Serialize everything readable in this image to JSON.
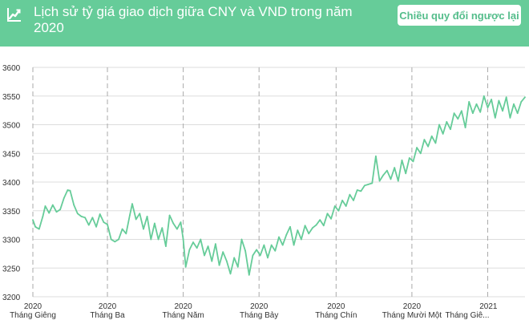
{
  "header": {
    "title": "Lịch sử tỷ giá giao dịch giữa CNY và VND trong năm 2020",
    "icon": "line-chart-icon",
    "reverse_button": "Chiều quy đổi ngược lại"
  },
  "colors": {
    "header_bg": "#66cc99",
    "line": "#66cc99",
    "button_text": "#54bd8b"
  },
  "chart_data": {
    "type": "line",
    "title": "",
    "xlabel": "",
    "ylabel": "",
    "ylim": [
      3200,
      3600
    ],
    "yticks": [
      3200,
      3250,
      3300,
      3350,
      3400,
      3450,
      3500,
      3550,
      3600
    ],
    "xlim": [
      "2020-01-01",
      "2021-01-31"
    ],
    "xticks": [
      {
        "date": "2020-01-01",
        "year": "2020",
        "month": "Tháng Giêng"
      },
      {
        "date": "2020-03-01",
        "year": "2020",
        "month": "Tháng Ba"
      },
      {
        "date": "2020-05-01",
        "year": "2020",
        "month": "Tháng Năm"
      },
      {
        "date": "2020-07-01",
        "year": "2020",
        "month": "Tháng Bảy"
      },
      {
        "date": "2020-09-01",
        "year": "2020",
        "month": "Tháng Chín"
      },
      {
        "date": "2020-11-01",
        "year": "2020",
        "month": "Tháng Mười Một"
      },
      {
        "date": "2021-01-01",
        "year": "2021",
        "month": "Tháng Giê..."
      }
    ],
    "grid": true,
    "series": [
      {
        "values": [
          [
            "2020-01-01",
            3334
          ],
          [
            "2020-01-03",
            3322
          ],
          [
            "2020-01-06",
            3318
          ],
          [
            "2020-01-09",
            3340
          ],
          [
            "2020-01-11",
            3358
          ],
          [
            "2020-01-14",
            3346
          ],
          [
            "2020-01-17",
            3360
          ],
          [
            "2020-01-20",
            3348
          ],
          [
            "2020-01-23",
            3352
          ],
          [
            "2020-01-26",
            3372
          ],
          [
            "2020-01-29",
            3386
          ],
          [
            "2020-01-31",
            3385
          ],
          [
            "2020-02-03",
            3360
          ],
          [
            "2020-02-06",
            3345
          ],
          [
            "2020-02-09",
            3340
          ],
          [
            "2020-02-12",
            3338
          ],
          [
            "2020-02-15",
            3325
          ],
          [
            "2020-02-18",
            3338
          ],
          [
            "2020-02-21",
            3322
          ],
          [
            "2020-02-24",
            3344
          ],
          [
            "2020-02-27",
            3330
          ],
          [
            "2020-03-01",
            3326
          ],
          [
            "2020-03-04",
            3300
          ],
          [
            "2020-03-07",
            3296
          ],
          [
            "2020-03-10",
            3300
          ],
          [
            "2020-03-13",
            3318
          ],
          [
            "2020-03-16",
            3310
          ],
          [
            "2020-03-19",
            3342
          ],
          [
            "2020-03-21",
            3362
          ],
          [
            "2020-03-24",
            3335
          ],
          [
            "2020-03-27",
            3345
          ],
          [
            "2020-03-30",
            3318
          ],
          [
            "2020-04-02",
            3340
          ],
          [
            "2020-04-05",
            3300
          ],
          [
            "2020-04-08",
            3328
          ],
          [
            "2020-04-11",
            3300
          ],
          [
            "2020-04-14",
            3320
          ],
          [
            "2020-04-17",
            3288
          ],
          [
            "2020-04-20",
            3342
          ],
          [
            "2020-04-23",
            3328
          ],
          [
            "2020-04-26",
            3318
          ],
          [
            "2020-04-29",
            3330
          ],
          [
            "2020-05-01",
            3300
          ],
          [
            "2020-05-03",
            3252
          ],
          [
            "2020-05-06",
            3282
          ],
          [
            "2020-05-09",
            3295
          ],
          [
            "2020-05-12",
            3285
          ],
          [
            "2020-05-15",
            3300
          ],
          [
            "2020-05-18",
            3272
          ],
          [
            "2020-05-21",
            3288
          ],
          [
            "2020-05-24",
            3262
          ],
          [
            "2020-05-27",
            3292
          ],
          [
            "2020-05-30",
            3255
          ],
          [
            "2020-06-02",
            3278
          ],
          [
            "2020-06-05",
            3262
          ],
          [
            "2020-06-08",
            3240
          ],
          [
            "2020-06-11",
            3268
          ],
          [
            "2020-06-14",
            3252
          ],
          [
            "2020-06-17",
            3300
          ],
          [
            "2020-06-20",
            3280
          ],
          [
            "2020-06-23",
            3238
          ],
          [
            "2020-06-26",
            3272
          ],
          [
            "2020-06-29",
            3282
          ],
          [
            "2020-07-02",
            3272
          ],
          [
            "2020-07-05",
            3290
          ],
          [
            "2020-07-08",
            3268
          ],
          [
            "2020-07-11",
            3290
          ],
          [
            "2020-07-14",
            3280
          ],
          [
            "2020-07-17",
            3304
          ],
          [
            "2020-07-20",
            3290
          ],
          [
            "2020-07-23",
            3308
          ],
          [
            "2020-07-26",
            3322
          ],
          [
            "2020-07-29",
            3290
          ],
          [
            "2020-08-01",
            3316
          ],
          [
            "2020-08-04",
            3300
          ],
          [
            "2020-08-07",
            3324
          ],
          [
            "2020-08-10",
            3310
          ],
          [
            "2020-08-13",
            3320
          ],
          [
            "2020-08-16",
            3325
          ],
          [
            "2020-08-19",
            3334
          ],
          [
            "2020-08-22",
            3324
          ],
          [
            "2020-08-25",
            3345
          ],
          [
            "2020-08-28",
            3336
          ],
          [
            "2020-08-31",
            3358
          ],
          [
            "2020-09-03",
            3350
          ],
          [
            "2020-09-06",
            3368
          ],
          [
            "2020-09-09",
            3358
          ],
          [
            "2020-09-12",
            3378
          ],
          [
            "2020-09-15",
            3368
          ],
          [
            "2020-09-18",
            3386
          ],
          [
            "2020-09-21",
            3384
          ],
          [
            "2020-09-24",
            3394
          ],
          [
            "2020-09-27",
            3396
          ],
          [
            "2020-09-30",
            3398
          ],
          [
            "2020-10-03",
            3445
          ],
          [
            "2020-10-06",
            3402
          ],
          [
            "2020-10-09",
            3412
          ],
          [
            "2020-10-12",
            3420
          ],
          [
            "2020-10-15",
            3405
          ],
          [
            "2020-10-18",
            3425
          ],
          [
            "2020-10-21",
            3402
          ],
          [
            "2020-10-24",
            3438
          ],
          [
            "2020-10-27",
            3415
          ],
          [
            "2020-10-30",
            3442
          ],
          [
            "2020-11-02",
            3436
          ],
          [
            "2020-11-05",
            3460
          ],
          [
            "2020-11-08",
            3450
          ],
          [
            "2020-11-11",
            3474
          ],
          [
            "2020-11-14",
            3462
          ],
          [
            "2020-11-17",
            3480
          ],
          [
            "2020-11-20",
            3468
          ],
          [
            "2020-11-23",
            3500
          ],
          [
            "2020-11-26",
            3484
          ],
          [
            "2020-11-29",
            3505
          ],
          [
            "2020-12-02",
            3492
          ],
          [
            "2020-12-05",
            3520
          ],
          [
            "2020-12-08",
            3510
          ],
          [
            "2020-12-11",
            3524
          ],
          [
            "2020-12-14",
            3495
          ],
          [
            "2020-12-17",
            3540
          ],
          [
            "2020-12-20",
            3520
          ],
          [
            "2020-12-23",
            3536
          ],
          [
            "2020-12-26",
            3522
          ],
          [
            "2020-12-29",
            3550
          ],
          [
            "2021-01-01",
            3530
          ],
          [
            "2021-01-04",
            3544
          ],
          [
            "2021-01-07",
            3512
          ],
          [
            "2021-01-10",
            3542
          ],
          [
            "2021-01-13",
            3524
          ],
          [
            "2021-01-16",
            3548
          ],
          [
            "2021-01-19",
            3512
          ],
          [
            "2021-01-22",
            3536
          ],
          [
            "2021-01-25",
            3520
          ],
          [
            "2021-01-28",
            3540
          ],
          [
            "2021-01-31",
            3548
          ]
        ]
      }
    ]
  }
}
